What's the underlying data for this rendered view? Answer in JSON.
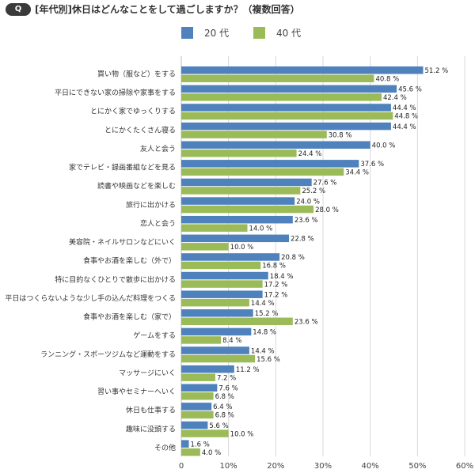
{
  "header": {
    "badge": "Q",
    "title": "[年代別]休日はどんなことをして過ごしますか？（複数回答）"
  },
  "chart_data": {
    "type": "bar",
    "orientation": "horizontal",
    "title": "[年代別]休日はどんなことをして過ごしますか？（複数回答）",
    "xlabel": "",
    "ylabel": "",
    "xlim": [
      0,
      60
    ],
    "x_ticks": [
      "0",
      "10%",
      "20%",
      "30%",
      "40%",
      "50%",
      "60%"
    ],
    "x_tick_values": [
      0,
      10,
      20,
      30,
      40,
      50,
      60
    ],
    "grid": "vertical",
    "legend_position": "top",
    "value_suffix": " %",
    "categories": [
      "買い物（服など）をする",
      "平日にできない家の掃除や家事をする",
      "とにかく家でゆっくりする",
      "とにかくたくさん寝る",
      "友人と会う",
      "家でテレビ・録画番組などを見る",
      "読書や映画などを楽しむ",
      "旅行に出かける",
      "恋人と会う",
      "美容院・ネイルサロンなどにいく",
      "食事やお酒を楽しむ（外で）",
      "特に目的なくひとりで散歩に出かける",
      "平日はつくらないような少し手の込んだ料理をつくる",
      "食事やお酒を楽しむ（家で）",
      "ゲームをする",
      "ランニング・スポーツジムなど運動をする",
      "マッサージにいく",
      "習い事やセミナーへいく",
      "休日も仕事する",
      "趣味に没頭する",
      "その他"
    ],
    "series": [
      {
        "name": "20 代",
        "color": "#4f81bd",
        "values": [
          51.2,
          45.6,
          44.4,
          44.4,
          40.0,
          37.6,
          27.6,
          24.0,
          23.6,
          22.8,
          20.8,
          18.4,
          17.2,
          15.2,
          14.8,
          14.4,
          11.2,
          7.6,
          6.4,
          5.6,
          1.6
        ]
      },
      {
        "name": "40 代",
        "color": "#9bbb59",
        "values": [
          40.8,
          42.4,
          44.8,
          30.8,
          24.4,
          34.4,
          25.2,
          28.0,
          14.0,
          10.0,
          16.8,
          17.2,
          14.4,
          23.6,
          8.4,
          15.6,
          7.2,
          6.8,
          6.8,
          10.0,
          4.0
        ]
      }
    ]
  }
}
